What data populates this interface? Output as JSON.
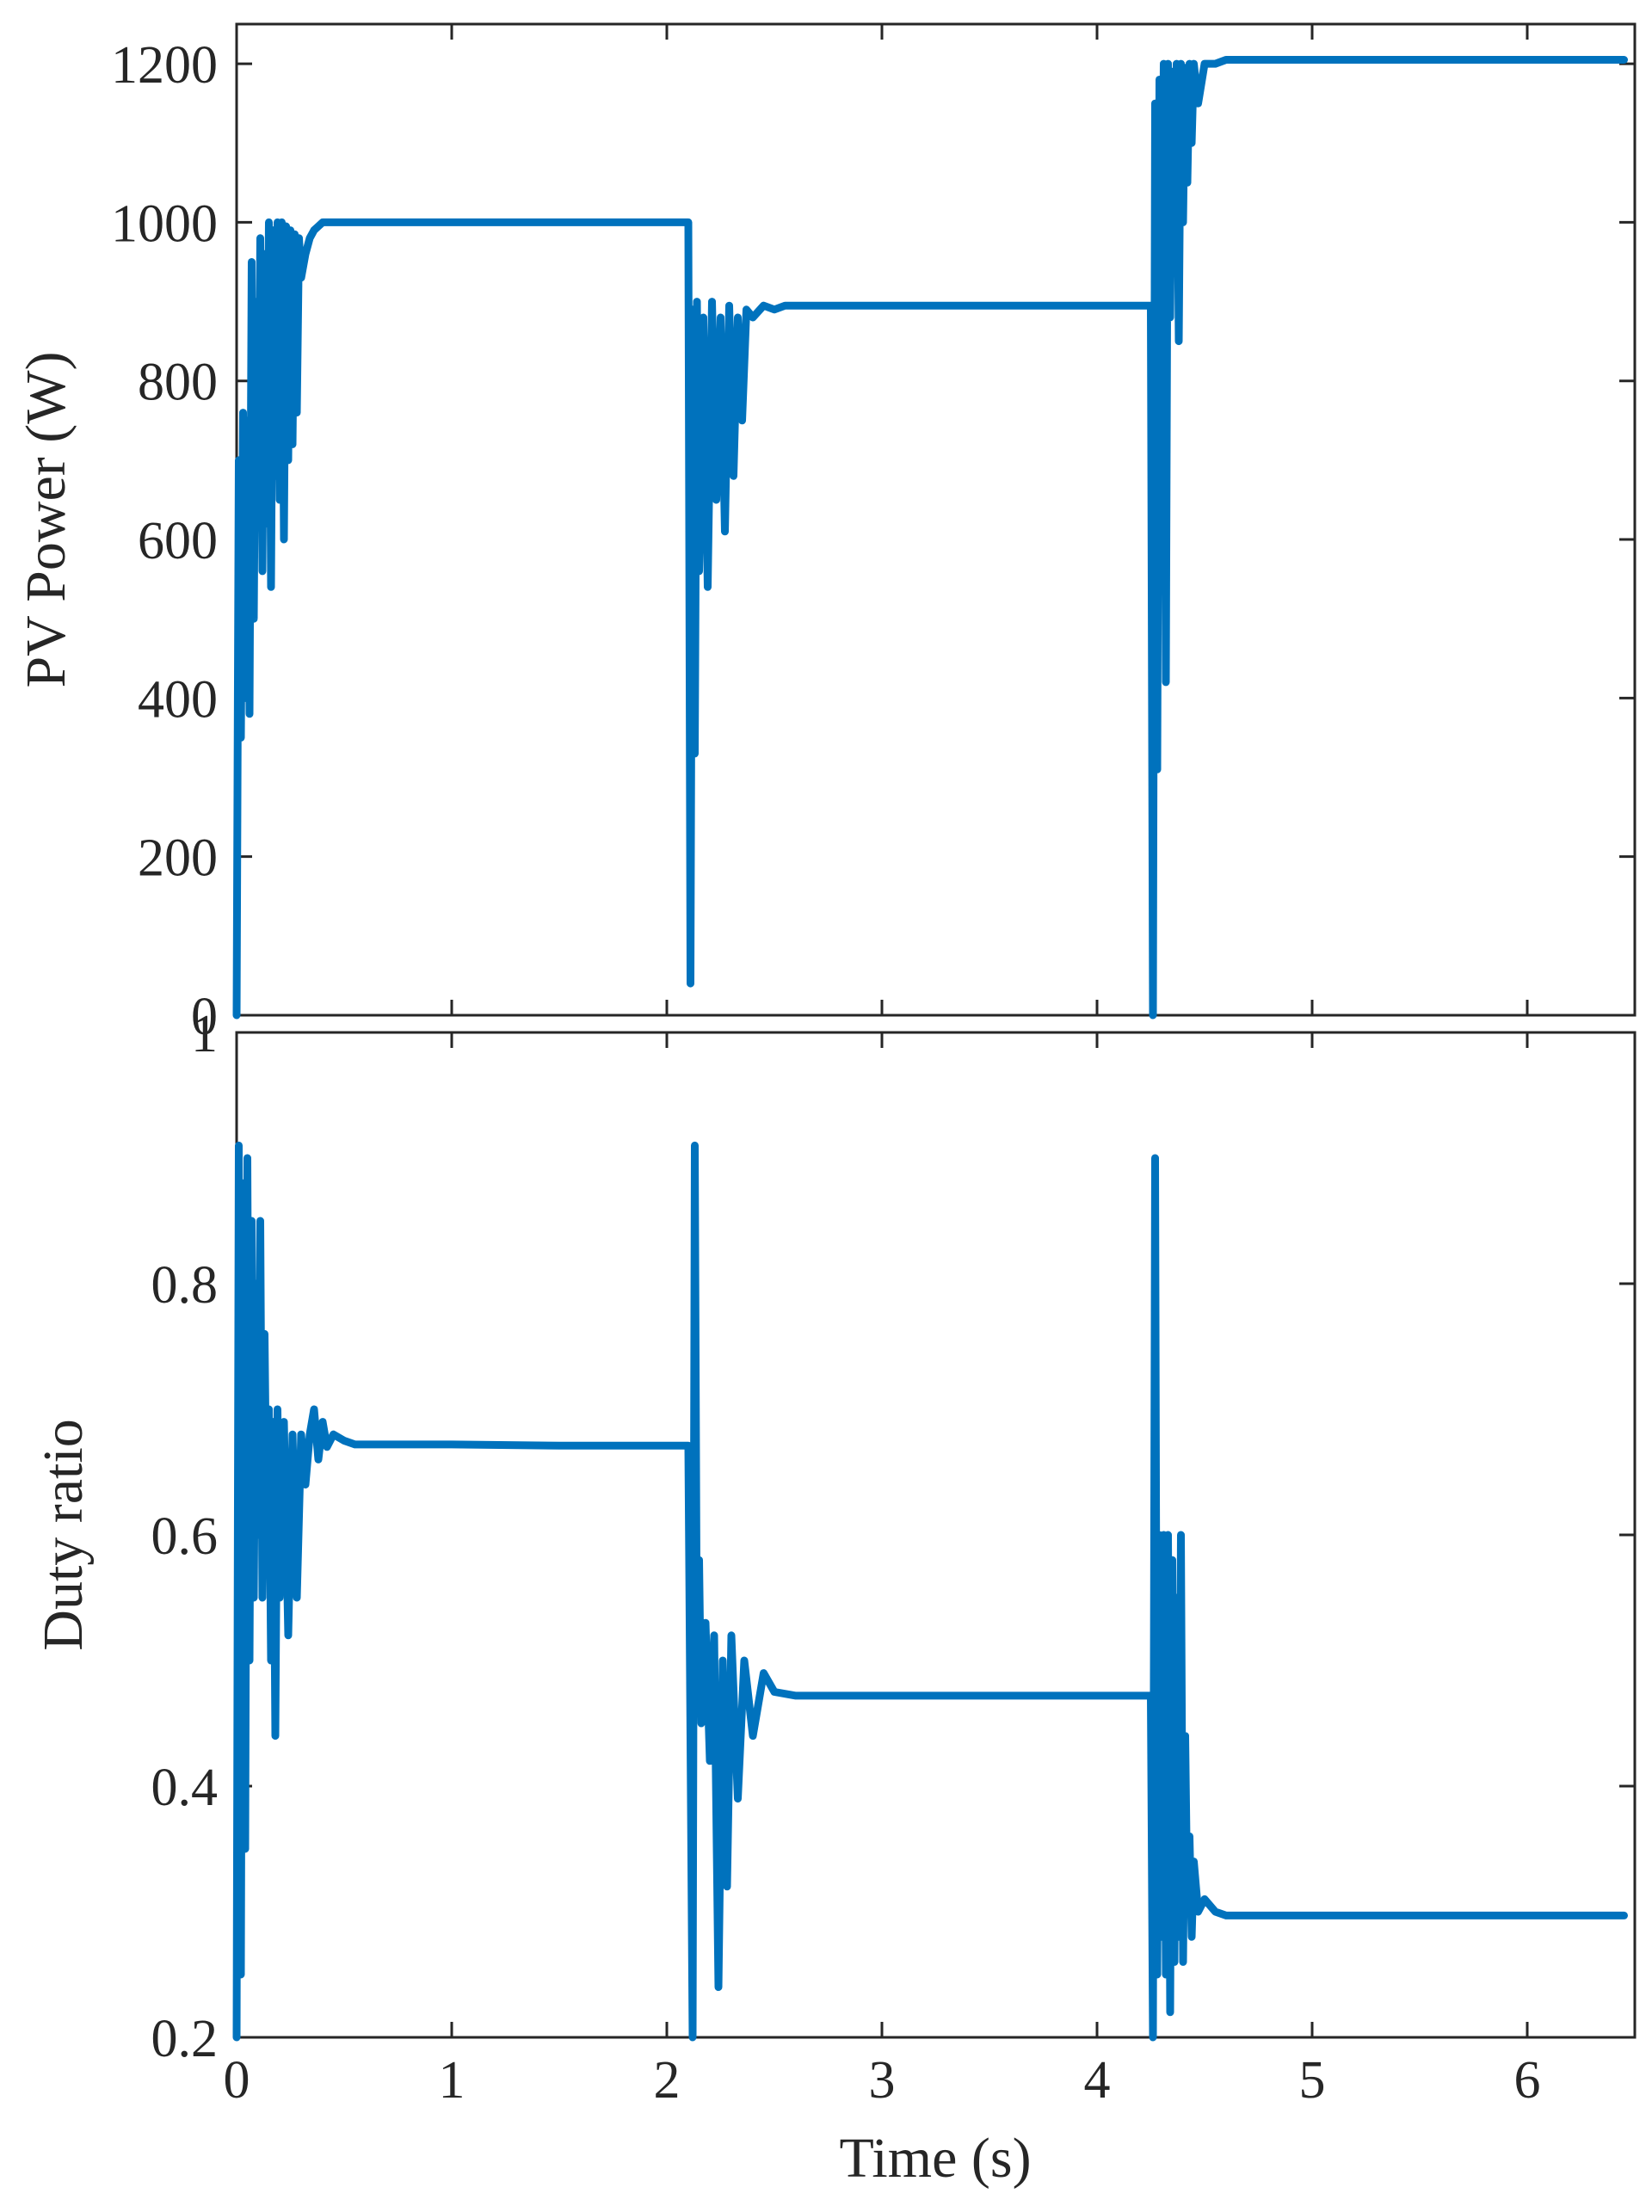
{
  "colors": {
    "series": "#0072BD",
    "axes": "#262626"
  },
  "chart_data": [
    {
      "type": "line",
      "title": "",
      "xlabel": "",
      "ylabel": "PV Power (W)",
      "xlim": [
        0,
        6.5
      ],
      "ylim": [
        0,
        1250
      ],
      "xticks": [
        "0",
        "1",
        "2",
        "3",
        "4",
        "5",
        "6"
      ],
      "yticks": [
        "0",
        "200",
        "400",
        "600",
        "800",
        "1000",
        "1200"
      ],
      "grid": false,
      "series": [
        {
          "x": [
            0,
            0.01,
            0.02,
            0.03,
            0.04,
            0.05,
            0.06,
            0.07,
            0.08,
            0.09,
            0.1,
            0.11,
            0.12,
            0.13,
            0.14,
            0.15,
            0.16,
            0.17,
            0.18,
            0.19,
            0.2,
            0.21,
            0.22,
            0.23,
            0.24,
            0.25,
            0.26,
            0.27,
            0.28,
            0.29,
            0.3,
            0.32,
            0.34,
            0.36,
            0.38,
            0.4,
            0.45,
            0.5,
            0.55,
            0.6,
            0.7,
            1.0,
            1.5,
            2.0,
            2.1,
            2.11,
            2.12,
            2.13,
            2.14,
            2.15,
            2.17,
            2.19,
            2.21,
            2.23,
            2.25,
            2.27,
            2.29,
            2.31,
            2.33,
            2.35,
            2.37,
            2.4,
            2.45,
            2.5,
            2.55,
            2.6,
            3.0,
            3.5,
            4.0,
            4.2,
            4.25,
            4.26,
            4.27,
            4.28,
            4.29,
            4.3,
            4.31,
            4.32,
            4.33,
            4.34,
            4.35,
            4.36,
            4.37,
            4.38,
            4.39,
            4.4,
            4.41,
            4.42,
            4.43,
            4.44,
            4.45,
            4.47,
            4.5,
            4.55,
            4.6,
            4.7,
            5.0,
            5.5,
            6.0,
            6.45
          ],
          "y": [
            0,
            700,
            350,
            760,
            400,
            750,
            380,
            950,
            500,
            900,
            620,
            980,
            560,
            960,
            620,
            1000,
            540,
            990,
            680,
            1000,
            650,
            1000,
            600,
            995,
            700,
            990,
            720,
            985,
            760,
            980,
            930,
            960,
            980,
            990,
            995,
            1000,
            1000,
            1000,
            1000,
            1000,
            1000,
            1000,
            1000,
            1000,
            1000,
            40,
            890,
            330,
            900,
            560,
            880,
            540,
            900,
            650,
            880,
            610,
            895,
            680,
            880,
            750,
            890,
            880,
            895,
            890,
            895,
            895,
            895,
            895,
            895,
            895,
            895,
            0,
            1150,
            310,
            1180,
            850,
            1200,
            420,
            1200,
            880,
            1190,
            950,
            1200,
            850,
            1200,
            1000,
            1195,
            1050,
            1200,
            1100,
            1200,
            1150,
            1200,
            1200,
            1205,
            1205,
            1205,
            1205,
            1205,
            1205
          ]
        }
      ]
    },
    {
      "type": "line",
      "title": "",
      "xlabel": "Time (s)",
      "ylabel": "Duty ratio",
      "xlim": [
        0,
        6.5
      ],
      "ylim": [
        0.2,
        1
      ],
      "xticks": [
        "0",
        "1",
        "2",
        "3",
        "4",
        "5",
        "6"
      ],
      "yticks": [
        "0.2",
        "0.4",
        "0.6",
        "0.8",
        "1"
      ],
      "grid": false,
      "series": [
        {
          "x": [
            0,
            0.01,
            0.02,
            0.03,
            0.04,
            0.05,
            0.06,
            0.07,
            0.08,
            0.09,
            0.1,
            0.11,
            0.12,
            0.13,
            0.14,
            0.15,
            0.16,
            0.17,
            0.18,
            0.19,
            0.2,
            0.22,
            0.24,
            0.26,
            0.28,
            0.3,
            0.32,
            0.34,
            0.36,
            0.38,
            0.4,
            0.42,
            0.45,
            0.5,
            0.55,
            0.6,
            0.7,
            1.0,
            1.5,
            2.0,
            2.1,
            2.12,
            2.13,
            2.14,
            2.15,
            2.16,
            2.18,
            2.2,
            2.22,
            2.24,
            2.26,
            2.28,
            2.3,
            2.33,
            2.36,
            2.4,
            2.45,
            2.5,
            2.6,
            3.0,
            3.5,
            4.0,
            4.25,
            4.26,
            4.27,
            4.28,
            4.29,
            4.3,
            4.31,
            4.32,
            4.33,
            4.34,
            4.35,
            4.36,
            4.37,
            4.38,
            4.39,
            4.4,
            4.41,
            4.42,
            4.43,
            4.44,
            4.45,
            4.47,
            4.5,
            4.55,
            4.6,
            4.7,
            5.0,
            5.5,
            6.0,
            6.45
          ],
          "y": [
            0.2,
            0.91,
            0.25,
            0.88,
            0.35,
            0.9,
            0.5,
            0.85,
            0.55,
            0.8,
            0.6,
            0.85,
            0.55,
            0.76,
            0.6,
            0.7,
            0.5,
            0.69,
            0.44,
            0.7,
            0.55,
            0.69,
            0.52,
            0.68,
            0.55,
            0.68,
            0.64,
            0.68,
            0.7,
            0.66,
            0.69,
            0.67,
            0.68,
            0.675,
            0.672,
            0.672,
            0.672,
            0.672,
            0.671,
            0.671,
            0.671,
            0.2,
            0.91,
            0.49,
            0.58,
            0.45,
            0.53,
            0.42,
            0.52,
            0.24,
            0.5,
            0.32,
            0.52,
            0.39,
            0.5,
            0.44,
            0.49,
            0.475,
            0.472,
            0.472,
            0.472,
            0.472,
            0.472,
            0.2,
            0.9,
            0.25,
            0.6,
            0.28,
            0.6,
            0.25,
            0.6,
            0.22,
            0.58,
            0.26,
            0.55,
            0.28,
            0.6,
            0.26,
            0.44,
            0.3,
            0.36,
            0.28,
            0.34,
            0.3,
            0.31,
            0.3,
            0.297,
            0.297,
            0.297,
            0.297,
            0.297,
            0.297
          ]
        }
      ]
    }
  ]
}
